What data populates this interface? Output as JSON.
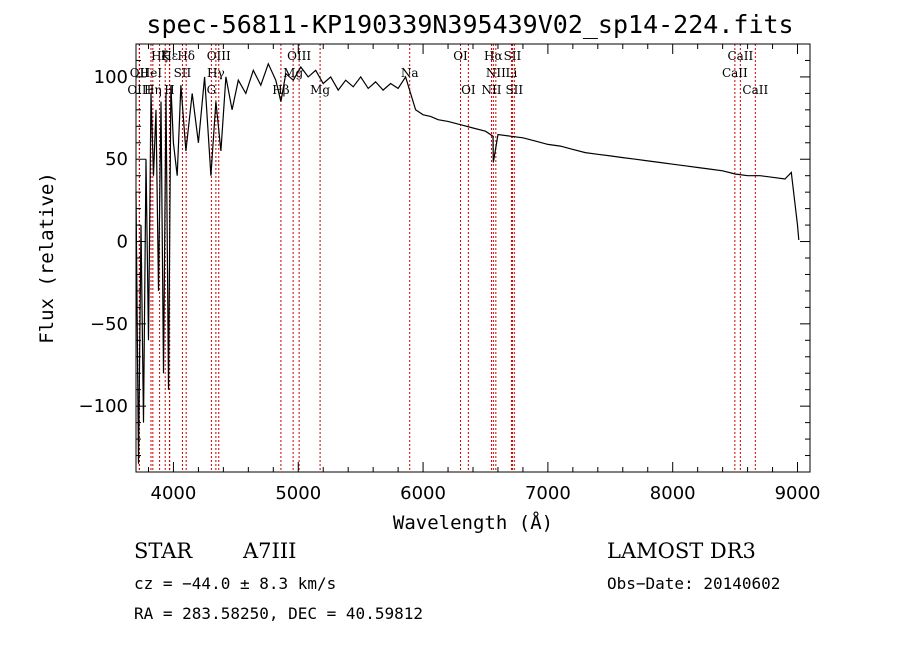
{
  "chart_data": {
    "type": "line",
    "title": "spec-56811-KP190339N395439V02_sp14-224.fits",
    "xlabel": "Wavelength (Å)",
    "ylabel": "Flux (relative)",
    "xlim": [
      3700,
      9100
    ],
    "ylim": [
      -140,
      120
    ],
    "xticks": [
      4000,
      5000,
      6000,
      7000,
      8000,
      9000
    ],
    "yticks": [
      -100,
      -50,
      0,
      50,
      100
    ],
    "grid": false,
    "series": [
      {
        "name": "flux",
        "x": [
          3700,
          3720,
          3740,
          3760,
          3780,
          3800,
          3820,
          3840,
          3860,
          3880,
          3900,
          3920,
          3940,
          3960,
          3980,
          4000,
          4030,
          4060,
          4100,
          4150,
          4200,
          4250,
          4300,
          4340,
          4380,
          4420,
          4470,
          4520,
          4580,
          4640,
          4700,
          4760,
          4820,
          4861,
          4900,
          4960,
          5020,
          5080,
          5140,
          5200,
          5260,
          5320,
          5380,
          5440,
          5500,
          5560,
          5620,
          5680,
          5740,
          5800,
          5860,
          5900,
          5940,
          6000,
          6060,
          6120,
          6200,
          6300,
          6400,
          6500,
          6560,
          6563,
          6600,
          6700,
          6800,
          6900,
          7000,
          7100,
          7200,
          7300,
          7400,
          7500,
          7600,
          7700,
          7800,
          7900,
          8000,
          8100,
          8200,
          8300,
          8400,
          8500,
          8600,
          8700,
          8800,
          8900,
          8950,
          9000,
          9010
        ],
        "y": [
          30,
          -135,
          10,
          -110,
          50,
          -60,
          90,
          40,
          80,
          -30,
          85,
          -80,
          90,
          -90,
          95,
          60,
          40,
          95,
          55,
          90,
          60,
          100,
          40,
          85,
          55,
          100,
          80,
          98,
          90,
          104,
          95,
          108,
          98,
          85,
          102,
          98,
          106,
          100,
          104,
          96,
          100,
          92,
          98,
          94,
          100,
          93,
          97,
          92,
          96,
          93,
          100,
          90,
          80,
          77,
          76,
          74,
          73,
          71,
          69,
          67,
          64,
          48,
          65,
          64,
          63,
          61,
          59,
          58,
          56,
          54,
          53,
          52,
          51,
          50,
          49,
          48,
          47,
          46,
          45,
          44,
          43,
          41,
          40,
          40,
          39,
          38,
          42,
          10,
          1
        ]
      }
    ],
    "spectral_lines": [
      {
        "label": "Hζ",
        "wavelength": 3889,
        "row": 0
      },
      {
        "label": "Hε",
        "wavelength": 3970,
        "row": 0
      },
      {
        "label": "K",
        "wavelength": 3934,
        "row": 0
      },
      {
        "label": "Hδ",
        "wavelength": 4102,
        "row": 0
      },
      {
        "label": "OIII",
        "wavelength": 4363,
        "row": 0
      },
      {
        "label": "OIII",
        "wavelength": 5007,
        "row": 0
      },
      {
        "label": "OI",
        "wavelength": 6300,
        "row": 0
      },
      {
        "label": "Hα",
        "wavelength": 6563,
        "row": 0
      },
      {
        "label": "SII",
        "wavelength": 6716,
        "row": 0
      },
      {
        "label": "CaII",
        "wavelength": 8542,
        "row": 0
      },
      {
        "label": "OII",
        "wavelength": 3727,
        "row": 1
      },
      {
        "label": "HeI",
        "wavelength": 3820,
        "row": 1
      },
      {
        "label": "SII",
        "wavelength": 4072,
        "row": 1
      },
      {
        "label": "Hγ",
        "wavelength": 4340,
        "row": 1
      },
      {
        "label": "Mg",
        "wavelength": 4959,
        "row": 1
      },
      {
        "label": "Na",
        "wavelength": 5893,
        "row": 1
      },
      {
        "label": "NII",
        "wavelength": 6583,
        "row": 1
      },
      {
        "label": "Li",
        "wavelength": 6708,
        "row": 1
      },
      {
        "label": "CaII",
        "wavelength": 8498,
        "row": 1
      },
      {
        "label": "OIII",
        "wavelength": 3727,
        "row": 2
      },
      {
        "label": "Hη",
        "wavelength": 3835,
        "row": 2
      },
      {
        "label": "H",
        "wavelength": 3968,
        "row": 2
      },
      {
        "label": "G",
        "wavelength": 4304,
        "row": 2
      },
      {
        "label": "Hβ",
        "wavelength": 4861,
        "row": 2
      },
      {
        "label": "Mg",
        "wavelength": 5175,
        "row": 2
      },
      {
        "label": "OI",
        "wavelength": 6363,
        "row": 2
      },
      {
        "label": "NII",
        "wavelength": 6548,
        "row": 2
      },
      {
        "label": "SII",
        "wavelength": 6731,
        "row": 2
      },
      {
        "label": "CaII",
        "wavelength": 8662,
        "row": 2
      }
    ],
    "line_color": "#000000",
    "marker_color": "#cc0000"
  },
  "info": {
    "object_type": "STAR",
    "subclass": "A7III",
    "survey": "LAMOST DR3",
    "cz": "cz = −44.0 ± 8.3 km/s",
    "obs_date": "Obs−Date: 20140602",
    "coords": "RA = 283.58250, DEC =  40.59812"
  }
}
